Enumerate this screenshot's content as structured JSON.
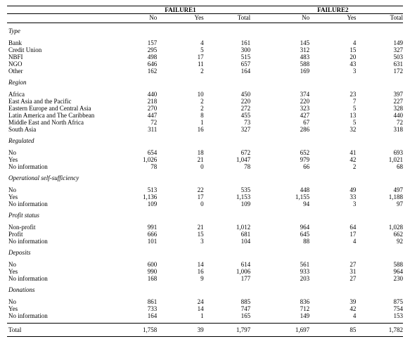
{
  "headers": {
    "group1": "FAILURE1",
    "group2": "FAILURE2",
    "no": "No",
    "yes": "Yes",
    "total": "Total"
  },
  "sections": [
    {
      "title": "Type",
      "rows": [
        {
          "label": "Bank",
          "a": [
            157,
            4,
            161
          ],
          "b": [
            145,
            4,
            149
          ]
        },
        {
          "label": "Credit Union",
          "a": [
            295,
            5,
            300
          ],
          "b": [
            312,
            15,
            327
          ]
        },
        {
          "label": "NBFI",
          "a": [
            498,
            17,
            515
          ],
          "b": [
            483,
            20,
            503
          ]
        },
        {
          "label": "NGO",
          "a": [
            646,
            11,
            657
          ],
          "b": [
            588,
            43,
            631
          ]
        },
        {
          "label": "Other",
          "a": [
            162,
            2,
            164
          ],
          "b": [
            169,
            3,
            172
          ]
        }
      ]
    },
    {
      "title": "Region",
      "rows": [
        {
          "label": "Africa",
          "a": [
            440,
            10,
            450
          ],
          "b": [
            374,
            23,
            397
          ]
        },
        {
          "label": "East Asia and the Pacific",
          "a": [
            218,
            2,
            220
          ],
          "b": [
            220,
            7,
            227
          ]
        },
        {
          "label": "Eastern Europe and Central Asia",
          "a": [
            270,
            2,
            272
          ],
          "b": [
            323,
            5,
            328
          ]
        },
        {
          "label": "Latin America and The Caribbean",
          "a": [
            447,
            8,
            455
          ],
          "b": [
            427,
            13,
            440
          ]
        },
        {
          "label": "Middle East and North Africa",
          "a": [
            72,
            1,
            73
          ],
          "b": [
            67,
            5,
            72
          ]
        },
        {
          "label": "South Asia",
          "a": [
            311,
            16,
            327
          ],
          "b": [
            286,
            32,
            318
          ]
        }
      ]
    },
    {
      "title": "Regulated",
      "rows": [
        {
          "label": "No",
          "a": [
            654,
            18,
            672
          ],
          "b": [
            652,
            41,
            693
          ]
        },
        {
          "label": "Yes",
          "a": [
            "1,026",
            21,
            "1,047"
          ],
          "b": [
            979,
            42,
            "1,021"
          ]
        },
        {
          "label": "No information",
          "a": [
            78,
            0,
            78
          ],
          "b": [
            66,
            2,
            68
          ]
        }
      ]
    },
    {
      "title": "Operational self-sufficiency",
      "rows": [
        {
          "label": "No",
          "a": [
            513,
            22,
            535
          ],
          "b": [
            448,
            49,
            497
          ]
        },
        {
          "label": "Yes",
          "a": [
            "1,136",
            17,
            "1,153"
          ],
          "b": [
            "1,155",
            33,
            "1,188"
          ]
        },
        {
          "label": "No information",
          "a": [
            109,
            0,
            109
          ],
          "b": [
            94,
            3,
            97
          ]
        }
      ]
    },
    {
      "title": "Profit status",
      "rows": [
        {
          "label": "Non-profit",
          "a": [
            991,
            21,
            "1,012"
          ],
          "b": [
            964,
            64,
            "1,028"
          ]
        },
        {
          "label": "Profit",
          "a": [
            666,
            15,
            681
          ],
          "b": [
            645,
            17,
            662
          ]
        },
        {
          "label": "No information",
          "a": [
            101,
            3,
            104
          ],
          "b": [
            88,
            4,
            92
          ]
        }
      ]
    },
    {
      "title": "Deposits",
      "rows": [
        {
          "label": "No",
          "a": [
            600,
            14,
            614
          ],
          "b": [
            561,
            27,
            588
          ]
        },
        {
          "label": "Yes",
          "a": [
            990,
            16,
            "1,006"
          ],
          "b": [
            933,
            31,
            964
          ]
        },
        {
          "label": "No information",
          "a": [
            168,
            9,
            177
          ],
          "b": [
            203,
            27,
            230
          ]
        }
      ]
    },
    {
      "title": "Donations",
      "rows": [
        {
          "label": "No",
          "a": [
            861,
            24,
            885
          ],
          "b": [
            836,
            39,
            875
          ]
        },
        {
          "label": "Yes",
          "a": [
            733,
            14,
            747
          ],
          "b": [
            712,
            42,
            754
          ]
        },
        {
          "label": "No information",
          "a": [
            164,
            1,
            165
          ],
          "b": [
            149,
            4,
            153
          ]
        }
      ]
    }
  ],
  "total": {
    "label": "Total",
    "a": [
      "1,758",
      39,
      "1,797"
    ],
    "b": [
      "1,697",
      85,
      "1,782"
    ]
  }
}
